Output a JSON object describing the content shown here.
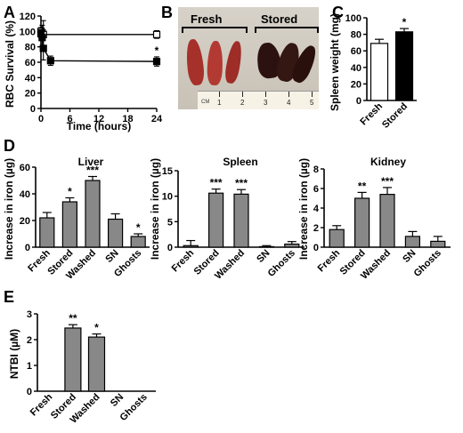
{
  "panel_labels": {
    "a": "A",
    "b": "B",
    "c": "C",
    "d": "D",
    "e": "E"
  },
  "photo": {
    "fresh_label": "Fresh",
    "stored_label": "Stored",
    "ruler_unit": "CM",
    "ruler_numbers": [
      "1",
      "2",
      "3",
      "4",
      "5"
    ]
  },
  "colors": {
    "bar_gray": "#888888",
    "bar_black": "#000000",
    "bar_white": "#ffffff",
    "fresh_spleen": "#a6302a",
    "stored_spleen": "#2b1210"
  },
  "chart_data": [
    {
      "id": "A",
      "type": "line",
      "xlabel": "Time (hours)",
      "ylabel": "RBC Survival (%)",
      "xlim": [
        0,
        24
      ],
      "ylim": [
        0,
        120
      ],
      "xticks": [
        0,
        6,
        12,
        18,
        24
      ],
      "yticks": [
        0,
        20,
        40,
        60,
        80,
        100,
        120
      ],
      "series": [
        {
          "marker": "open-square",
          "x": [
            0,
            0.25,
            0.5,
            24
          ],
          "y": [
            100,
            98,
            96,
            96
          ],
          "err": [
            5,
            10,
            18,
            5
          ],
          "stars": [
            "",
            "",
            "",
            ""
          ]
        },
        {
          "marker": "filled-square",
          "x": [
            0,
            0.25,
            0.5,
            2,
            24
          ],
          "y": [
            97,
            92,
            78,
            62,
            61
          ],
          "err": [
            5,
            12,
            15,
            6,
            6
          ],
          "stars": [
            "",
            "",
            "",
            "",
            "*"
          ]
        }
      ]
    },
    {
      "id": "C",
      "type": "bar",
      "ylabel": "Spleen weight (mg)",
      "categories": [
        "Fresh",
        "Stored"
      ],
      "values": [
        69,
        83
      ],
      "errors": [
        5,
        4
      ],
      "stars": [
        "",
        "*"
      ],
      "fills": [
        "white",
        "black"
      ],
      "ylim": [
        0,
        100
      ],
      "yticks": [
        0,
        20,
        40,
        60,
        80,
        100
      ]
    },
    {
      "id": "D-Liver",
      "type": "bar",
      "title": "Liver",
      "ylabel": "Increase in iron (µg)",
      "categories": [
        "Fresh",
        "Stored",
        "Washed",
        "SN",
        "Ghosts"
      ],
      "values": [
        22,
        34,
        50,
        21,
        8
      ],
      "errors": [
        4,
        3,
        3,
        4,
        2
      ],
      "stars": [
        "",
        "*",
        "***",
        "",
        "*"
      ],
      "ylim": [
        0,
        60
      ],
      "yticks": [
        0,
        20,
        40,
        60
      ]
    },
    {
      "id": "D-Spleen",
      "type": "bar",
      "title": "Spleen",
      "ylabel": "Increase in iron (µg)",
      "categories": [
        "Fresh",
        "Stored",
        "Washed",
        "SN",
        "Ghosts"
      ],
      "values": [
        0.3,
        10.6,
        10.4,
        0.1,
        0.6
      ],
      "errors": [
        1.0,
        0.8,
        0.9,
        0.2,
        0.5
      ],
      "stars": [
        "",
        "***",
        "***",
        "",
        ""
      ],
      "ylim": [
        0,
        15
      ],
      "yticks": [
        0,
        5,
        10,
        15
      ]
    },
    {
      "id": "D-Kidney",
      "type": "bar",
      "title": "Kidney",
      "ylabel": "Increase in iron (µg)",
      "categories": [
        "Fresh",
        "Stored",
        "Washed",
        "SN",
        "Ghosts"
      ],
      "values": [
        1.8,
        5.0,
        5.4,
        1.1,
        0.6
      ],
      "errors": [
        0.4,
        0.6,
        0.7,
        0.5,
        0.5
      ],
      "stars": [
        "",
        "**",
        "***",
        "",
        ""
      ],
      "ylim": [
        0,
        8
      ],
      "yticks": [
        0,
        2,
        4,
        6,
        8
      ]
    },
    {
      "id": "E",
      "type": "bar",
      "ylabel": "NTBI (µM)",
      "categories": [
        "Fresh",
        "Stored",
        "Washed",
        "SN",
        "Ghosts"
      ],
      "values": [
        0,
        2.45,
        2.1,
        0,
        0
      ],
      "errors": [
        0,
        0.13,
        0.12,
        0,
        0
      ],
      "stars": [
        "",
        "**",
        "*",
        "",
        ""
      ],
      "ylim": [
        0,
        3
      ],
      "yticks": [
        0,
        1,
        2,
        3
      ]
    }
  ]
}
